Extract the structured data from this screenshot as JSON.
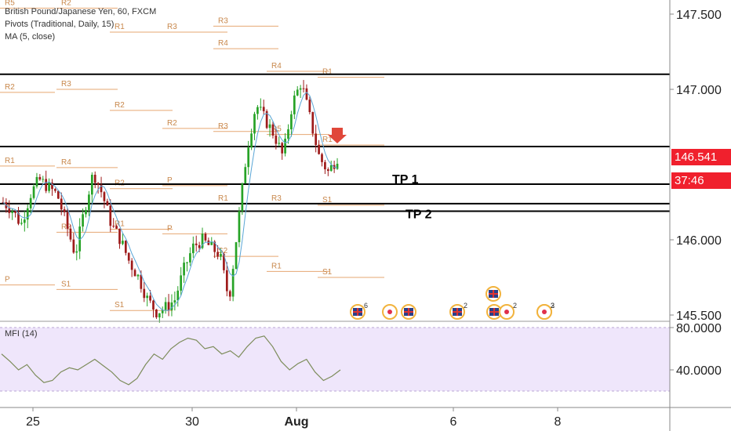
{
  "header": {
    "title": "British Pound/Japanese Yen, 60, FXCM",
    "indicator_pivots": "Pivots (Traditional, Daily, 15)",
    "indicator_ma": "MA (5, close)"
  },
  "mfi_label": "MFI (14)",
  "price_tag": {
    "value": "146.541",
    "countdown": "37:46",
    "bg": "#f0202d"
  },
  "colors": {
    "bull": "#27a327",
    "bear": "#9e1b1b",
    "pivot": "#e6a772",
    "level": "#000000",
    "axis_text": "#222222",
    "mfi_bg": "#efe6fb",
    "mfi_line": "#7d8c5b",
    "ma": "#5aa6d6"
  },
  "chart_data": [
    {
      "type": "candlestick",
      "title": "British Pound/Japanese Yen, 60, FXCM",
      "x_tick_labels": [
        "25",
        "30",
        "Aug",
        "6",
        "8"
      ],
      "y_tick_labels": [
        "147.500",
        "147.000",
        "146.000",
        "145.500"
      ],
      "ylim": [
        145.46,
        147.68
      ],
      "key_levels": [
        {
          "label": "",
          "value": 147.1
        },
        {
          "label": "",
          "value": 146.62
        },
        {
          "label": "TP 1",
          "value": 146.37
        },
        {
          "label": "",
          "value": 146.24
        },
        {
          "label": "TP 2",
          "value": 146.19
        }
      ],
      "pivots": [
        {
          "label": "R5",
          "value": 147.54
        },
        {
          "label": "R2",
          "value": 147.54
        },
        {
          "label": "R1",
          "value": 147.38
        },
        {
          "label": "R3",
          "value": 147.38
        },
        {
          "label": "R4",
          "value": 147.27
        },
        {
          "label": "R4",
          "value": 147.12
        },
        {
          "label": "R1",
          "value": 147.08
        },
        {
          "label": "R2",
          "value": 146.98
        },
        {
          "label": "R3",
          "value": 147.0
        },
        {
          "label": "R2",
          "value": 146.86
        },
        {
          "label": "R2",
          "value": 146.74
        },
        {
          "label": "R3",
          "value": 146.72
        },
        {
          "label": "R5",
          "value": 146.7
        },
        {
          "label": "R1",
          "value": 146.63
        },
        {
          "label": "R1",
          "value": 146.49
        },
        {
          "label": "R4",
          "value": 146.48
        },
        {
          "label": "R2",
          "value": 146.34
        },
        {
          "label": "P",
          "value": 146.36
        },
        {
          "label": "R1",
          "value": 146.24
        },
        {
          "label": "R3",
          "value": 146.24
        },
        {
          "label": "S1",
          "value": 146.23
        },
        {
          "label": "P",
          "value": 146.19
        },
        {
          "label": "R2",
          "value": 146.05
        },
        {
          "label": "R1",
          "value": 146.07
        },
        {
          "label": "P",
          "value": 146.04
        },
        {
          "label": "S2",
          "value": 145.89
        },
        {
          "label": "R1",
          "value": 145.79
        },
        {
          "label": "S1",
          "value": 145.75
        },
        {
          "label": "P",
          "value": 145.7
        },
        {
          "label": "S1",
          "value": 145.67
        },
        {
          "label": "S1",
          "value": 145.53
        },
        {
          "label": "S2",
          "value": 145.46
        },
        {
          "label": "R3",
          "value": 147.42
        }
      ],
      "ohlc_path": [
        146.25,
        146.2,
        146.1,
        146.3,
        146.4,
        146.35,
        146.3,
        146.1,
        145.9,
        146.2,
        146.45,
        146.3,
        146.1,
        146.0,
        145.85,
        145.75,
        145.6,
        145.52,
        145.55,
        145.6,
        145.8,
        145.95,
        146.0,
        145.95,
        145.9,
        145.6,
        146.1,
        146.6,
        146.9,
        146.8,
        146.7,
        146.55,
        146.9,
        147.05,
        146.8,
        146.55,
        146.45,
        146.55
      ],
      "ma_period": 5,
      "events": [
        {
          "kind": "uk-flag",
          "count": "6"
        },
        {
          "kind": "dot",
          "count": ""
        },
        {
          "kind": "uk-flag",
          "count": ""
        },
        {
          "kind": "uk-flag",
          "count": "2"
        },
        {
          "kind": "uk-flag",
          "count": ""
        },
        {
          "kind": "dot",
          "count": "2"
        },
        {
          "kind": "dot",
          "count": "2"
        },
        {
          "kind": "dot",
          "count": "3"
        }
      ]
    },
    {
      "type": "line",
      "title": "MFI (14)",
      "y_tick_labels": [
        "80.0000",
        "40.0000"
      ],
      "ylim": [
        20,
        85
      ],
      "values": [
        55,
        48,
        40,
        45,
        35,
        28,
        30,
        38,
        42,
        40,
        45,
        50,
        44,
        38,
        30,
        26,
        32,
        45,
        55,
        50,
        60,
        66,
        70,
        68,
        60,
        62,
        55,
        58,
        52,
        62,
        70,
        72,
        62,
        48,
        40,
        46,
        50,
        38,
        30,
        34,
        40
      ]
    }
  ]
}
